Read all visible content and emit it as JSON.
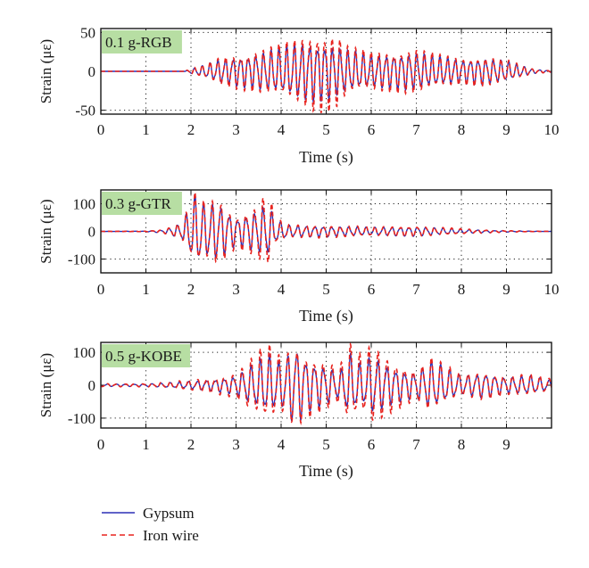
{
  "colors": {
    "gypsum": "#2b2fb5",
    "iron_wire": "#e8231e",
    "label_box": "#b7dea3",
    "grid": "#222222"
  },
  "legend": {
    "placement": "bottom-left",
    "entries": [
      {
        "label": "Gypsum",
        "style": "solid",
        "color": "#2b2fb5"
      },
      {
        "label": "Iron wire",
        "style": "dashed",
        "color": "#e8231e"
      }
    ]
  },
  "chart_data": [
    {
      "type": "line",
      "panel_label": "0.1 g-RGB",
      "xlabel": "Time (s)",
      "ylabel": "Strain (με)",
      "xlim": [
        0,
        10
      ],
      "ylim": [
        -55,
        55
      ],
      "xticks": [
        0,
        1,
        2,
        3,
        4,
        5,
        6,
        7,
        8,
        9,
        10
      ],
      "yticks": [
        -50,
        0,
        50
      ],
      "grid": true,
      "series": [
        {
          "name": "Gypsum",
          "envelope": {
            "x": [
              0,
              1.85,
              2.0,
              2.3,
              2.7,
              3.3,
              3.9,
              4.6,
              5.0,
              5.5,
              6.0,
              7.0,
              7.5,
              8.0,
              8.5,
              9.0,
              9.3,
              9.6,
              10
            ],
            "amplitude": [
              0,
              0,
              3,
              8,
              17,
              22,
              30,
              40,
              38,
              28,
              22,
              25,
              20,
              16,
              18,
              14,
              8,
              3,
              1
            ]
          },
          "dominant_period_s": 0.17
        },
        {
          "name": "Iron wire",
          "envelope": {
            "x": [
              0,
              1.85,
              2.0,
              2.3,
              2.7,
              3.3,
              3.9,
              4.6,
              4.8,
              5.2,
              5.5,
              6.0,
              7.0,
              7.5,
              8.0,
              8.5,
              9.0,
              9.3,
              9.6,
              10
            ],
            "amplitude": [
              0,
              0,
              4,
              9,
              20,
              26,
              34,
              48,
              54,
              52,
              32,
              26,
              30,
              22,
              18,
              20,
              15,
              9,
              3,
              1
            ]
          },
          "dominant_period_s": 0.17
        }
      ]
    },
    {
      "type": "line",
      "panel_label": "0.3 g-GTR",
      "xlabel": "Time (s)",
      "ylabel": "Strain (με)",
      "xlim": [
        0,
        10
      ],
      "ylim": [
        -150,
        150
      ],
      "xticks": [
        0,
        1,
        2,
        3,
        4,
        5,
        6,
        7,
        8,
        9,
        10
      ],
      "yticks": [
        -100,
        0,
        100
      ],
      "grid": true,
      "series": [
        {
          "name": "Gypsum",
          "envelope": {
            "x": [
              0,
              1.0,
              1.4,
              1.8,
              2.1,
              2.3,
              2.6,
              3.0,
              3.4,
              3.7,
              3.9,
              4.2,
              5.0,
              6.0,
              7.0,
              8.0,
              8.8,
              9.5,
              10
            ],
            "amplitude": [
              0,
              1,
              6,
              30,
              140,
              100,
              110,
              50,
              75,
              100,
              40,
              22,
              20,
              15,
              18,
              8,
              3,
              1,
              0
            ]
          },
          "dominant_period_s": 0.19
        },
        {
          "name": "Iron wire",
          "envelope": {
            "x": [
              0,
              1.0,
              1.4,
              1.8,
              2.1,
              2.3,
              2.6,
              3.0,
              3.4,
              3.7,
              3.9,
              4.2,
              5.0,
              6.0,
              7.0,
              8.0,
              8.8,
              9.5,
              10
            ],
            "amplitude": [
              0,
              1,
              7,
              35,
              145,
              110,
              125,
              60,
              90,
              150,
              45,
              25,
              24,
              18,
              20,
              10,
              4,
              1,
              0
            ]
          },
          "dominant_period_s": 0.19
        }
      ]
    },
    {
      "type": "line",
      "panel_label": "0.5 g-KOBE",
      "xlabel": "Time (s)",
      "ylabel": "Strain (με)",
      "xlim": [
        0,
        10
      ],
      "ylim": [
        -130,
        130
      ],
      "xticks": [
        0,
        1,
        2,
        3,
        4,
        5,
        6,
        7,
        8,
        9
      ],
      "yticks": [
        -100,
        0,
        100
      ],
      "grid": true,
      "series": [
        {
          "name": "Gypsum",
          "envelope": {
            "x": [
              0,
              1.0,
              1.8,
              2.5,
              3.0,
              3.3,
              3.7,
              4.0,
              4.3,
              4.6,
              5.0,
              5.3,
              5.5,
              5.8,
              6.0,
              6.5,
              7.0,
              7.3,
              8.0,
              8.5,
              9.0,
              9.5,
              10
            ],
            "amplitude": [
              4,
              4,
              10,
              18,
              30,
              60,
              95,
              70,
              130,
              80,
              60,
              40,
              100,
              60,
              95,
              55,
              40,
              80,
              30,
              40,
              25,
              30,
              15
            ]
          },
          "dominant_period_s": 0.2
        },
        {
          "name": "Iron wire",
          "envelope": {
            "x": [
              0,
              1.0,
              1.8,
              2.5,
              3.0,
              3.3,
              3.7,
              4.0,
              4.3,
              4.6,
              5.0,
              5.3,
              5.5,
              5.8,
              6.0,
              6.5,
              7.0,
              7.3,
              8.0,
              8.5,
              9.0,
              9.5,
              10
            ],
            "amplitude": [
              5,
              5,
              14,
              25,
              40,
              80,
              130,
              90,
              130,
              100,
              75,
              60,
              130,
              90,
              130,
              80,
              45,
              90,
              35,
              45,
              30,
              35,
              20
            ]
          },
          "dominant_period_s": 0.2
        }
      ]
    }
  ]
}
